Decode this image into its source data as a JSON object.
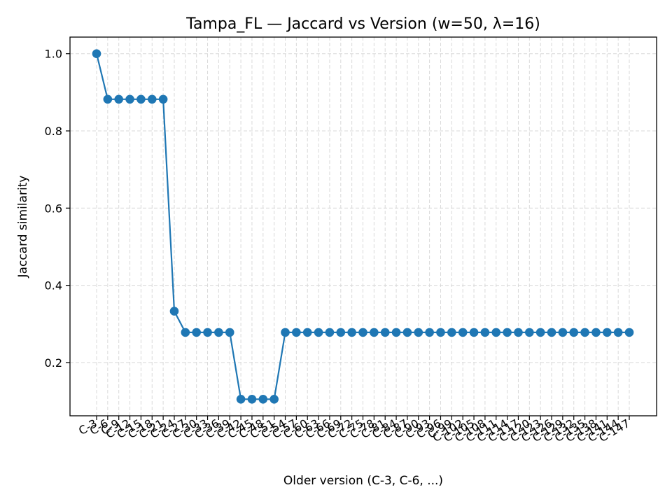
{
  "chart_data": {
    "type": "line",
    "title": "Tampa_FL — Jaccard vs Version (w=50, λ=16)",
    "xlabel": "Older version (C-3, C-6, ...)",
    "ylabel": "Jaccard similarity",
    "categories": [
      "C-3",
      "C-6",
      "C-9",
      "C-12",
      "C-15",
      "C-18",
      "C-21",
      "C-24",
      "C-27",
      "C-30",
      "C-33",
      "C-36",
      "C-39",
      "C-42",
      "C-45",
      "C-48",
      "C-51",
      "C-54",
      "C-57",
      "C-60",
      "C-63",
      "C-66",
      "C-69",
      "C-72",
      "C-75",
      "C-78",
      "C-81",
      "C-84",
      "C-87",
      "C-90",
      "C-93",
      "C-96",
      "C-99",
      "C-102",
      "C-105",
      "C-108",
      "C-111",
      "C-114",
      "C-117",
      "C-120",
      "C-123",
      "C-126",
      "C-129",
      "C-132",
      "C-135",
      "C-138",
      "C-141",
      "C-144",
      "C-147"
    ],
    "series": [
      {
        "values": [
          1.0,
          0.882,
          0.882,
          0.882,
          0.882,
          0.882,
          0.882,
          0.333,
          0.278,
          0.278,
          0.278,
          0.278,
          0.278,
          0.105,
          0.105,
          0.105,
          0.105,
          0.278,
          0.278,
          0.278,
          0.278,
          0.278,
          0.278,
          0.278,
          0.278,
          0.278,
          0.278,
          0.278,
          0.278,
          0.278,
          0.278,
          0.278,
          0.278,
          0.278,
          0.278,
          0.278,
          0.278,
          0.278,
          0.278,
          0.278,
          0.278,
          0.278,
          0.278,
          0.278,
          0.278,
          0.278,
          0.278,
          0.278,
          0.278
        ],
        "color": "#1f77b4",
        "marker": "circle"
      }
    ],
    "yticks": [
      "0.2",
      "0.4",
      "0.6",
      "0.8",
      "1.0"
    ],
    "ylim": [
      0.062,
      1.043
    ],
    "grid": true,
    "grid_style": "dashed",
    "legend": "none",
    "colors": {
      "line": "#1f77b4",
      "grid": "#d9d9d9",
      "axes": "#000000"
    }
  }
}
